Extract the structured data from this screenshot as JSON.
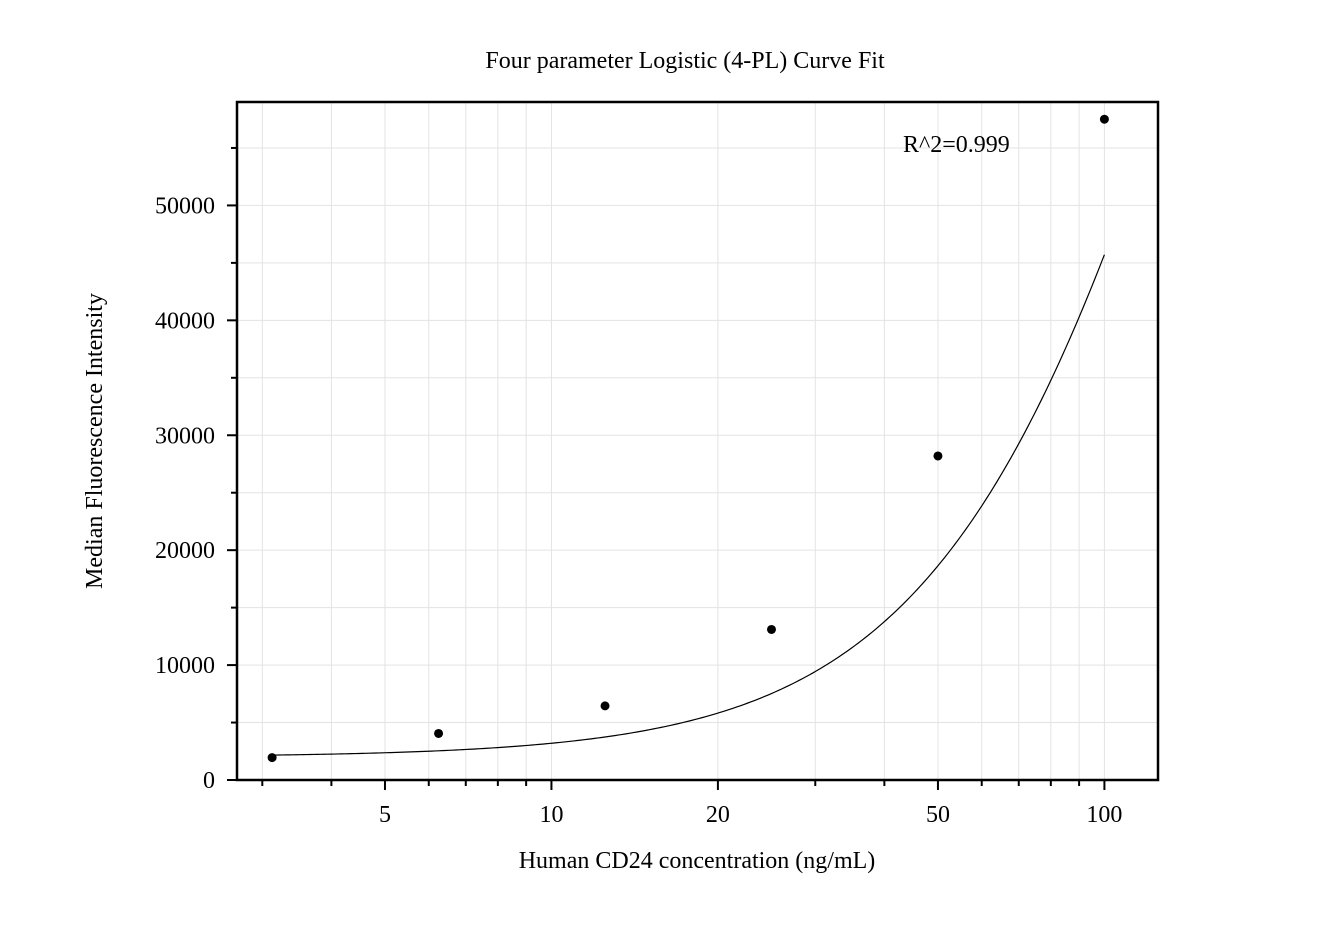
{
  "chart_data": {
    "type": "scatter",
    "title": "Four parameter Logistic (4-PL) Curve Fit",
    "xlabel": "Human CD24 concentration (ng/mL)",
    "ylabel": "Median Fluorescence Intensity",
    "x_scale": "log",
    "xlim": [
      2.7,
      125
    ],
    "ylim": [
      0,
      59000
    ],
    "x_ticks": [
      5,
      10,
      20,
      50,
      100
    ],
    "x_tick_labels": [
      "5",
      "10",
      "20",
      "50",
      "100"
    ],
    "y_ticks": [
      0,
      10000,
      20000,
      30000,
      40000,
      50000
    ],
    "y_tick_labels": [
      "0",
      "10000",
      "20000",
      "30000",
      "40000",
      "50000"
    ],
    "grid": true,
    "annotation": "R^2=0.999",
    "series": [
      {
        "x": [
          3.125,
          6.25,
          12.5,
          25,
          50,
          100
        ],
        "y": [
          1950,
          4050,
          6450,
          13100,
          28200,
          57500
        ]
      }
    ],
    "fit": {
      "model": "4-PL",
      "a": 2000,
      "b": 1.7,
      "c": 176,
      "d": 160000
    },
    "colors": {
      "points": "#000000",
      "curve": "#000000",
      "grid": "#e3e3e3"
    }
  }
}
